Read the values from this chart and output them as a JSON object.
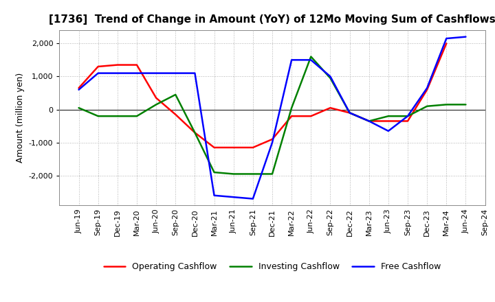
{
  "title": "[1736]  Trend of Change in Amount (YoY) of 12Mo Moving Sum of Cashflows",
  "ylabel": "Amount (million yen)",
  "xlabel": "",
  "x_labels": [
    "Jun-19",
    "Sep-19",
    "Dec-19",
    "Mar-20",
    "Jun-20",
    "Sep-20",
    "Dec-20",
    "Mar-21",
    "Jun-21",
    "Sep-21",
    "Dec-21",
    "Mar-22",
    "Jun-22",
    "Sep-22",
    "Dec-22",
    "Mar-23",
    "Jun-23",
    "Sep-23",
    "Dec-23",
    "Mar-24",
    "Jun-24",
    "Sep-24"
  ],
  "operating_cashflow": [
    650,
    1300,
    1350,
    1350,
    350,
    -150,
    -700,
    -1150,
    -1150,
    -1150,
    -900,
    -200,
    -200,
    50,
    -100,
    -350,
    -350,
    -350,
    600,
    2000,
    null,
    null
  ],
  "investing_cashflow": [
    50,
    -200,
    -200,
    -200,
    150,
    450,
    -700,
    -1900,
    -1950,
    -1950,
    -1950,
    50,
    1600,
    950,
    -100,
    -350,
    -200,
    -200,
    100,
    150,
    150,
    null
  ],
  "free_cashflow": [
    600,
    1100,
    1100,
    1100,
    1100,
    1100,
    1100,
    -2600,
    -2650,
    -2700,
    -1000,
    1500,
    1500,
    1000,
    -100,
    -350,
    -650,
    -200,
    650,
    2150,
    2200,
    null
  ],
  "ylim": [
    -2900,
    2400
  ],
  "yticks": [
    -2000,
    -1000,
    0,
    1000,
    2000
  ],
  "operating_color": "#ff0000",
  "investing_color": "#008000",
  "free_color": "#0000ff",
  "background_color": "#ffffff",
  "grid_color": "#b0b0b0",
  "line_width": 1.8,
  "title_fontsize": 11,
  "axis_label_fontsize": 9,
  "tick_fontsize": 8,
  "legend_fontsize": 9
}
